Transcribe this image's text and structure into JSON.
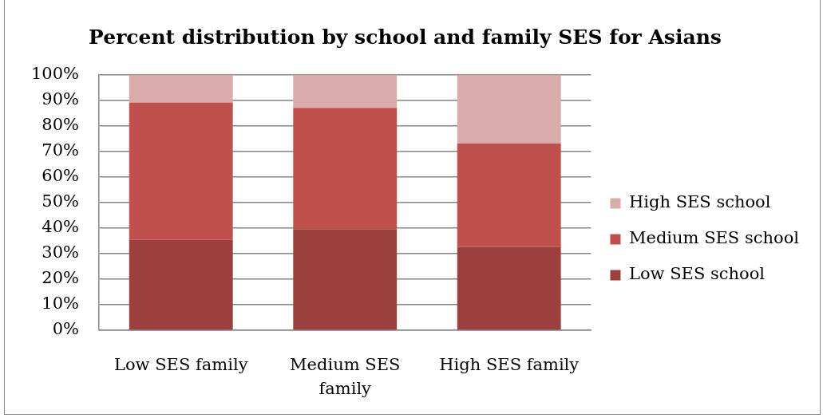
{
  "chart_data": {
    "type": "bar",
    "title": "Percent distribution by school and family SES for Asians",
    "categories": [
      "Low SES family",
      "Medium SES family",
      "High SES family"
    ],
    "series": [
      {
        "name": "Low SES school",
        "color": "#9c403e",
        "values": [
          35.4,
          39.6,
          32.6
        ]
      },
      {
        "name": "Medium SES school",
        "color": "#c0504d",
        "values": [
          53.8,
          47.5,
          40.6
        ]
      },
      {
        "name": "High SES school",
        "color": "#d9abab",
        "values": [
          10.8,
          12.9,
          26.8
        ]
      }
    ],
    "stacked": true,
    "ylim": [
      0,
      100
    ],
    "yticks": [
      {
        "value": 0,
        "label": "0%"
      },
      {
        "value": 10,
        "label": "10%"
      },
      {
        "value": 20,
        "label": "20%"
      },
      {
        "value": 30,
        "label": "30%"
      },
      {
        "value": 40,
        "label": "40%"
      },
      {
        "value": 50,
        "label": "50%"
      },
      {
        "value": 60,
        "label": "60%"
      },
      {
        "value": 70,
        "label": "70%"
      },
      {
        "value": 80,
        "label": "80%"
      },
      {
        "value": 90,
        "label": "90%"
      },
      {
        "value": 100,
        "label": "100%"
      }
    ],
    "grid": "y",
    "legend": "right"
  }
}
